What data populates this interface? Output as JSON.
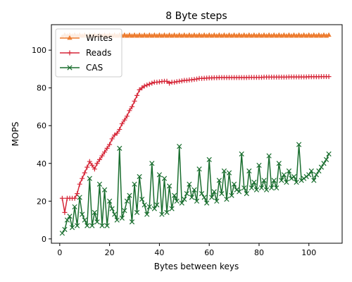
{
  "chart_data": {
    "type": "line",
    "title": "8 Byte steps",
    "xlabel": "Bytes between keys",
    "ylabel": "MOPS",
    "xlim": [
      -3.35,
      113.35
    ],
    "ylim": [
      -2.3,
      113.5
    ],
    "xticks": [
      0,
      20,
      40,
      60,
      80,
      100
    ],
    "yticks": [
      0,
      20,
      40,
      60,
      80,
      100
    ],
    "grid": false,
    "legend": "upper-left",
    "x": [
      1,
      2,
      3,
      4,
      5,
      6,
      7,
      8,
      9,
      10,
      11,
      12,
      13,
      14,
      15,
      16,
      17,
      18,
      19,
      20,
      21,
      22,
      23,
      24,
      25,
      26,
      27,
      28,
      29,
      30,
      31,
      32,
      33,
      34,
      35,
      36,
      37,
      38,
      39,
      40,
      41,
      42,
      43,
      44,
      45,
      46,
      47,
      48,
      49,
      50,
      51,
      52,
      53,
      54,
      55,
      56,
      57,
      58,
      59,
      60,
      61,
      62,
      63,
      64,
      65,
      66,
      67,
      68,
      69,
      70,
      71,
      72,
      73,
      74,
      75,
      76,
      77,
      78,
      79,
      80,
      81,
      82,
      83,
      84,
      85,
      86,
      87,
      88,
      89,
      90,
      91,
      92,
      93,
      94,
      95,
      96,
      97,
      98,
      99,
      100,
      101,
      102,
      103,
      104,
      105,
      106,
      107,
      108
    ],
    "series": [
      {
        "name": "Writes",
        "color": "#ed7d31",
        "marker": "triangle",
        "values": [
          107,
          108,
          107.5,
          108,
          107.5,
          108,
          107.5,
          108,
          107.5,
          108,
          107.5,
          108,
          107.5,
          108,
          107.5,
          108,
          107.5,
          108,
          107.5,
          108,
          107.5,
          108,
          107.5,
          108,
          107.5,
          108,
          107.5,
          108,
          107.5,
          108,
          107.5,
          108,
          107.5,
          108,
          107.5,
          108,
          107.5,
          108,
          107.5,
          108,
          107.5,
          108,
          107.5,
          108,
          107.5,
          108,
          107.5,
          108,
          107.5,
          108,
          107.5,
          108,
          107.5,
          108,
          107.5,
          108,
          107.5,
          108,
          107.5,
          108,
          107.5,
          108,
          107.5,
          108,
          107.5,
          108,
          107.5,
          108,
          107.5,
          108,
          107.5,
          108,
          107.5,
          108,
          107.5,
          108,
          107.5,
          108,
          107.5,
          108,
          107.5,
          108,
          107.5,
          108,
          107.5,
          108,
          107.5,
          108,
          107.5,
          108,
          107.5,
          108,
          107.5,
          108,
          107.5,
          108,
          107.5,
          108,
          107.5,
          108,
          107.5,
          108,
          107.5,
          108,
          107.5,
          108,
          107.5,
          108
        ]
      },
      {
        "name": "Reads",
        "color": "#d62738",
        "marker": "plus",
        "values": [
          21.5,
          14,
          21.5,
          21.5,
          21.5,
          21.5,
          24,
          29,
          32,
          35,
          38,
          41,
          39,
          37,
          40,
          42,
          44,
          46,
          48,
          50,
          53,
          55,
          56,
          58,
          61,
          63,
          65,
          68,
          70,
          73,
          76,
          79,
          80,
          81,
          81.5,
          82,
          82.5,
          83,
          83,
          83.2,
          83.4,
          83.5,
          83.5,
          82.5,
          83,
          83,
          83.3,
          83.5,
          83.7,
          84,
          84,
          84.2,
          84.3,
          84.5,
          84.7,
          85,
          85,
          85.1,
          85.2,
          85.3,
          85.3,
          85.4,
          85.4,
          85.5,
          85.5,
          85.5,
          85.5,
          85.5,
          85.5,
          85.5,
          85.5,
          85.5,
          85.5,
          85.5,
          85.5,
          85.6,
          85.6,
          85.6,
          85.6,
          85.6,
          85.6,
          85.7,
          85.7,
          85.7,
          85.7,
          85.7,
          85.7,
          85.7,
          85.7,
          85.7,
          85.7,
          85.8,
          85.8,
          85.8,
          85.8,
          85.8,
          85.8,
          85.8,
          85.8,
          85.9,
          85.9,
          85.9,
          85.9,
          85.9,
          86,
          86,
          86,
          86
        ]
      },
      {
        "name": "CAS",
        "color": "#1a6e2f",
        "marker": "x",
        "values": [
          3,
          5,
          10,
          12,
          6,
          17,
          7,
          22,
          13,
          10,
          7,
          32,
          7,
          14,
          9,
          29,
          7,
          26,
          7,
          20,
          16,
          13,
          10,
          48,
          11,
          15,
          20,
          23,
          9,
          29,
          14,
          33,
          21,
          18,
          13,
          17,
          40,
          16,
          18,
          34,
          13,
          32,
          14,
          28,
          16,
          23,
          20,
          49,
          19,
          21,
          24,
          29,
          22,
          26,
          20,
          37,
          24,
          22,
          19,
          42,
          22,
          25,
          20,
          31,
          24,
          36,
          21,
          35,
          23,
          29,
          26,
          25,
          45,
          27,
          24,
          36,
          27,
          30,
          26,
          39,
          27,
          31,
          26,
          44,
          27,
          31,
          27,
          40,
          31,
          34,
          30,
          36,
          32,
          33,
          30,
          50,
          31,
          32,
          33,
          34,
          36,
          31,
          34,
          36,
          38,
          40,
          42,
          45
        ]
      }
    ]
  }
}
